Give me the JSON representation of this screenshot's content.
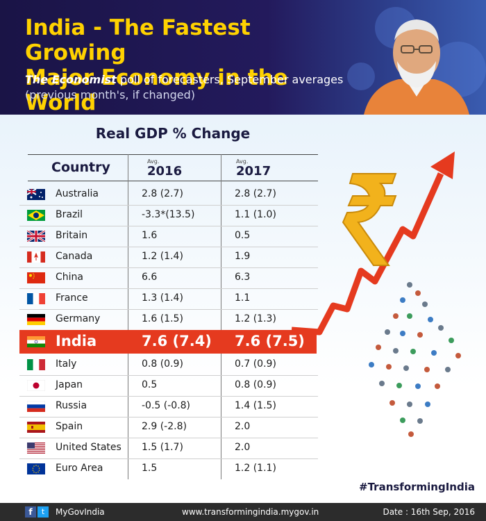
{
  "header": {
    "title_line1": "India - The Fastest Growing",
    "title_line2": "Major Economy in the World",
    "subtitle_source": "The Economist",
    "subtitle_rest": " poll of forecasters, September averages",
    "subtitle_line2": "(previous month's, if changed)"
  },
  "table": {
    "title": "Real GDP % Change",
    "country_header": "Country",
    "avg_label": "Avg.",
    "year1": "2016",
    "year2": "2017",
    "rows": [
      {
        "country": "Australia",
        "y2016": "2.8 (2.7)",
        "y2017": "2.8 (2.7)",
        "flag": "australia-flag-icon"
      },
      {
        "country": "Brazil",
        "y2016": "-3.3*(13.5)",
        "y2017": "1.1 (1.0)",
        "flag": "brazil-flag-icon"
      },
      {
        "country": "Britain",
        "y2016": "1.6",
        "y2017": "0.5",
        "flag": "britain-flag-icon"
      },
      {
        "country": "Canada",
        "y2016": "1.2 (1.4)",
        "y2017": "1.9",
        "flag": "canada-flag-icon"
      },
      {
        "country": "China",
        "y2016": "6.6",
        "y2017": "6.3",
        "flag": "china-flag-icon"
      },
      {
        "country": "France",
        "y2016": "1.3 (1.4)",
        "y2017": "1.1",
        "flag": "france-flag-icon"
      },
      {
        "country": "Germany",
        "y2016": "1.6 (1.5)",
        "y2017": "1.2 (1.3)",
        "flag": "germany-flag-icon"
      },
      {
        "country": "India",
        "y2016": "7.6 (7.4)",
        "y2017": "7.6 (7.5)",
        "flag": "india-flag-icon"
      },
      {
        "country": "Italy",
        "y2016": "0.8 (0.9)",
        "y2017": "0.7 (0.9)",
        "flag": "italy-flag-icon"
      },
      {
        "country": "Japan",
        "y2016": "0.5",
        "y2017": "0.8 (0.9)",
        "flag": "japan-flag-icon"
      },
      {
        "country": "Russia",
        "y2016": "-0.5 (-0.8)",
        "y2017": "1.4 (1.5)",
        "flag": "russia-flag-icon"
      },
      {
        "country": "Spain",
        "y2016": "2.9 (-2.8)",
        "y2017": "2.0",
        "flag": "spain-flag-icon"
      },
      {
        "country": "United States",
        "y2016": "1.5 (1.7)",
        "y2017": "2.0",
        "flag": "usa-flag-icon"
      },
      {
        "country": "Euro Area",
        "y2016": "1.5",
        "y2017": "1.2 (1.1)",
        "flag": "eu-flag-icon"
      }
    ]
  },
  "hashtag": "#TransformingIndia",
  "footer": {
    "brand": "MyGovIndia",
    "url": "www.transformingindia.mygov.in",
    "date": "Date : 16th Sep, 2016"
  },
  "colors": {
    "header_bg": "#1a1446",
    "title_yellow": "#ffd200",
    "india_highlight": "#e53a1f",
    "footer_bg": "#2c2c2c"
  }
}
